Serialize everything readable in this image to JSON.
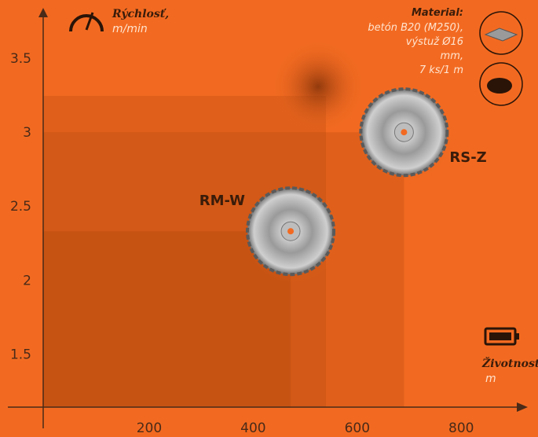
{
  "chart_data": {
    "type": "scatter",
    "y_label": [
      "Rýchlosť,",
      "m/min"
    ],
    "x_label": [
      "Životnosť,",
      "m"
    ],
    "material": {
      "title": "Material:",
      "lines": [
        "betón B20 (M250),",
        "výstuž Ø16",
        "mm,",
        "7 ks/1 m"
      ]
    },
    "points": [
      {
        "name": "RM-W",
        "x": 472,
        "y": 2.33
      },
      {
        "name": "RS-Z",
        "x": 690,
        "y": 3.0
      }
    ],
    "xlim": [
      0,
      925
    ],
    "ylim": [
      1.14,
      3.82
    ],
    "xticks": [
      200,
      400,
      600,
      800
    ],
    "yticks": [
      1.5,
      2,
      2.5,
      3,
      3.5
    ]
  }
}
